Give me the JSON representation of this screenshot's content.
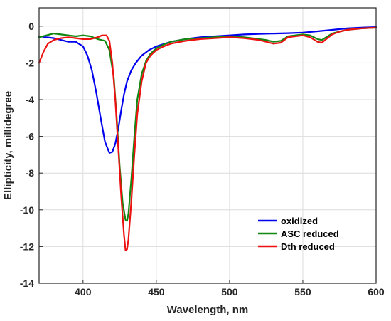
{
  "chart_data": {
    "type": "line",
    "title": "",
    "xlabel": "Wavelength, nm",
    "ylabel": "Ellipticity, millidegree",
    "xlim": [
      370,
      600
    ],
    "ylim": [
      -14,
      1
    ],
    "xticks": [
      400,
      450,
      500,
      550,
      600
    ],
    "yticks": [
      0,
      -2,
      -4,
      -6,
      -8,
      -10,
      -12,
      -14
    ],
    "grid": true,
    "legend_position": "bottom-right",
    "series": [
      {
        "name": "oxidized",
        "color": "#0000ee",
        "x": [
          370,
          375,
          380,
          385,
          390,
          395,
          400,
          403,
          406,
          409,
          412,
          415,
          418,
          420,
          422,
          424,
          426,
          428,
          430,
          433,
          436,
          440,
          445,
          450,
          460,
          470,
          480,
          490,
          500,
          510,
          520,
          530,
          540,
          550,
          560,
          570,
          580,
          590,
          600
        ],
        "y": [
          -0.55,
          -0.6,
          -0.65,
          -0.75,
          -0.85,
          -0.85,
          -1.1,
          -1.6,
          -2.4,
          -3.6,
          -5.0,
          -6.3,
          -6.9,
          -6.85,
          -6.4,
          -5.6,
          -4.6,
          -3.7,
          -3.0,
          -2.4,
          -2.0,
          -1.6,
          -1.3,
          -1.1,
          -0.85,
          -0.7,
          -0.6,
          -0.55,
          -0.5,
          -0.45,
          -0.42,
          -0.4,
          -0.38,
          -0.35,
          -0.28,
          -0.2,
          -0.12,
          -0.08,
          -0.05
        ]
      },
      {
        "name": "ASC reduced",
        "color": "#118811",
        "x": [
          370,
          375,
          380,
          385,
          390,
          395,
          400,
          405,
          410,
          415,
          418,
          421,
          423,
          425,
          427,
          429,
          430,
          431,
          433,
          435,
          437,
          440,
          443,
          446,
          450,
          455,
          460,
          470,
          480,
          490,
          500,
          510,
          520,
          525,
          530,
          535,
          540,
          550,
          555,
          560,
          563,
          566,
          570,
          575,
          580,
          590,
          600
        ],
        "y": [
          -0.6,
          -0.5,
          -0.4,
          -0.45,
          -0.5,
          -0.55,
          -0.5,
          -0.55,
          -0.7,
          -0.8,
          -1.3,
          -2.8,
          -5.0,
          -7.6,
          -9.6,
          -10.55,
          -10.6,
          -10.2,
          -8.3,
          -6.0,
          -4.0,
          -2.6,
          -1.9,
          -1.5,
          -1.2,
          -1.0,
          -0.85,
          -0.7,
          -0.65,
          -0.6,
          -0.55,
          -0.6,
          -0.7,
          -0.75,
          -0.85,
          -0.8,
          -0.55,
          -0.45,
          -0.5,
          -0.7,
          -0.75,
          -0.6,
          -0.4,
          -0.3,
          -0.2,
          -0.12,
          -0.08
        ]
      },
      {
        "name": "Dth reduced",
        "color": "#ee1111",
        "x": [
          370,
          373,
          376,
          380,
          385,
          390,
          395,
          400,
          405,
          410,
          413,
          416,
          418,
          420,
          422,
          424,
          426,
          428,
          429,
          430,
          431,
          433,
          435,
          437,
          440,
          443,
          446,
          450,
          455,
          460,
          470,
          480,
          490,
          500,
          510,
          520,
          525,
          530,
          535,
          540,
          550,
          555,
          560,
          563,
          566,
          570,
          575,
          580,
          590,
          600
        ],
        "y": [
          -2.0,
          -1.4,
          -0.95,
          -0.75,
          -0.65,
          -0.6,
          -0.65,
          -0.7,
          -0.7,
          -0.6,
          -0.5,
          -0.5,
          -0.8,
          -2.0,
          -4.0,
          -6.6,
          -9.2,
          -11.4,
          -12.2,
          -12.15,
          -11.6,
          -9.5,
          -7.0,
          -4.8,
          -3.0,
          -2.0,
          -1.6,
          -1.3,
          -1.1,
          -0.95,
          -0.8,
          -0.7,
          -0.65,
          -0.6,
          -0.65,
          -0.75,
          -0.85,
          -0.95,
          -0.9,
          -0.6,
          -0.5,
          -0.6,
          -0.85,
          -0.9,
          -0.7,
          -0.45,
          -0.3,
          -0.2,
          -0.12,
          -0.08
        ]
      }
    ]
  }
}
